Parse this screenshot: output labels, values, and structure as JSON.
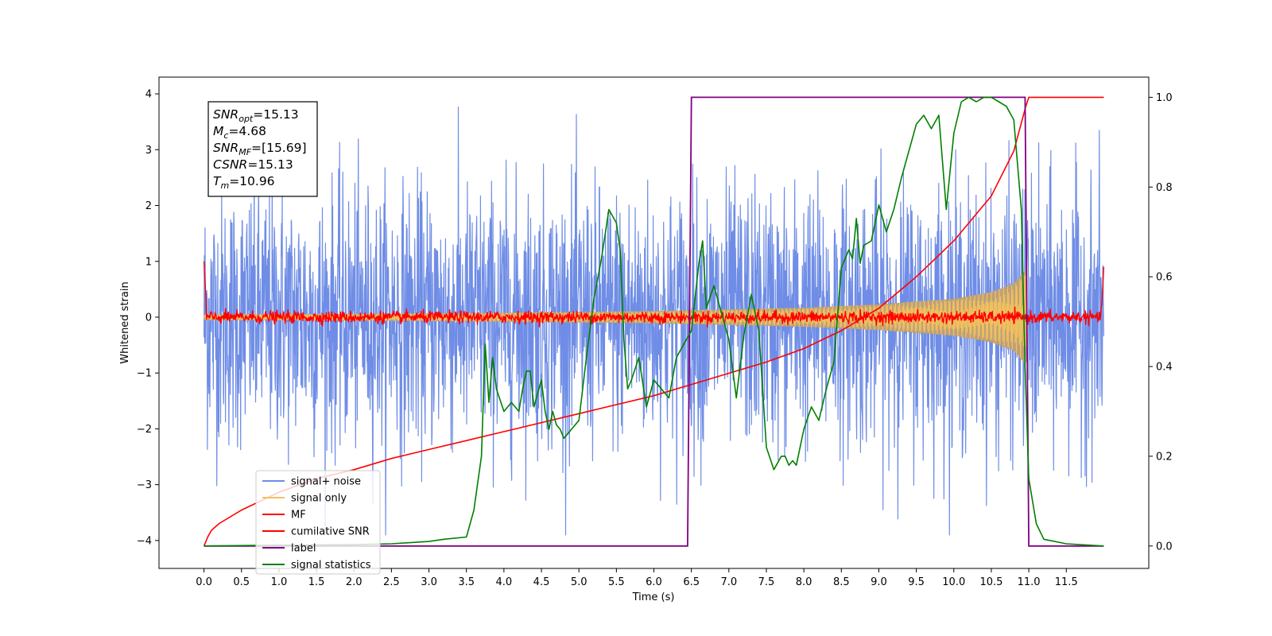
{
  "chart_data": {
    "type": "line",
    "xlabel": "Time (s)",
    "ylabel": "Whitened strain",
    "ylabel_right": "",
    "xlim": [
      -0.6,
      12.6
    ],
    "ylim": [
      -4.5,
      4.3
    ],
    "ylim_right": [
      -0.05,
      1.045
    ],
    "x_ticks": [
      "0.0",
      "0.5",
      "1.0",
      "1.5",
      "2.0",
      "2.5",
      "3.0",
      "3.5",
      "4.0",
      "4.5",
      "5.0",
      "5.5",
      "6.0",
      "6.5",
      "7.0",
      "7.5",
      "8.0",
      "8.5",
      "9.0",
      "9.5",
      "10.0",
      "10.5",
      "11.0",
      "11.5"
    ],
    "y_ticks": [
      "4",
      "3",
      "2",
      "1",
      "0",
      "−1",
      "−2",
      "−3",
      "−4"
    ],
    "y_ticks_right": [
      "1.0",
      "0.8",
      "0.6",
      "0.4",
      "0.2",
      "0.0"
    ],
    "grid": false,
    "legend_position": "lower left",
    "annotation": [
      {
        "name": "SNR",
        "sub": "opt",
        "value": "=15.13"
      },
      {
        "name": "M",
        "sub": "c",
        "value": "=4.68"
      },
      {
        "name": "SNR",
        "sub": "MF",
        "value": "=[15.69]"
      },
      {
        "name": "CSNR",
        "sub": "",
        "value": "=15.13"
      },
      {
        "name": "T",
        "sub": "m",
        "value": "=10.96"
      }
    ],
    "series": [
      {
        "name": "signal+ noise",
        "color": "#6f8de6",
        "axis": "left",
        "x_range": [
          0,
          12.0
        ],
        "envelope": {
          "min": [
            -3.9,
            3.9
          ],
          "typical": [
            -2.5,
            2.5
          ]
        }
      },
      {
        "name": "signal only",
        "color": "#f0c060",
        "axis": "left",
        "x_range": [
          0,
          11.0
        ],
        "fill_color": "#c0a070",
        "amplitude_at": {
          "x": [
            0,
            2,
            4,
            6,
            8,
            9,
            10,
            10.5,
            10.8,
            10.96
          ],
          "a": [
            0.05,
            0.06,
            0.08,
            0.11,
            0.17,
            0.23,
            0.33,
            0.45,
            0.6,
            0.85
          ]
        }
      },
      {
        "name": "MF",
        "color": "#ff0000",
        "axis": "left",
        "x_range": [
          0,
          12.0
        ],
        "typical_amplitude": 0.12
      },
      {
        "name": "cumilative SNR",
        "color": "#ff0000",
        "axis": "right",
        "x": [
          0,
          0.05,
          0.1,
          0.2,
          0.5,
          1,
          1.5,
          2,
          2.5,
          3,
          3.5,
          4,
          4.5,
          5,
          5.5,
          6,
          6.5,
          7,
          7.5,
          8,
          8.5,
          9,
          9.5,
          10,
          10.5,
          10.8,
          10.96,
          11.0,
          12.0
        ],
        "y": [
          0.0,
          0.02,
          0.035,
          0.05,
          0.08,
          0.12,
          0.15,
          0.17,
          0.195,
          0.215,
          0.235,
          0.255,
          0.275,
          0.295,
          0.315,
          0.335,
          0.36,
          0.385,
          0.41,
          0.44,
          0.48,
          0.53,
          0.6,
          0.68,
          0.78,
          0.88,
          0.98,
          1.0,
          1.0
        ]
      },
      {
        "name": "label",
        "color": "#800080",
        "axis": "right",
        "x": [
          0.0,
          6.45,
          6.5,
          10.95,
          11.0,
          12.0
        ],
        "y": [
          0.0,
          0.0,
          1.0,
          1.0,
          0.0,
          0.0
        ]
      },
      {
        "name": "signal statistics",
        "color": "#008000",
        "axis": "right",
        "x": [
          0.0,
          1.0,
          2.0,
          2.5,
          3.0,
          3.2,
          3.5,
          3.6,
          3.7,
          3.75,
          3.8,
          3.85,
          3.9,
          4.0,
          4.1,
          4.2,
          4.25,
          4.3,
          4.35,
          4.4,
          4.5,
          4.55,
          4.6,
          4.65,
          4.7,
          4.75,
          4.8,
          4.9,
          5.0,
          5.1,
          5.2,
          5.3,
          5.4,
          5.5,
          5.55,
          5.6,
          5.65,
          5.7,
          5.8,
          5.9,
          6.0,
          6.1,
          6.2,
          6.3,
          6.4,
          6.5,
          6.6,
          6.65,
          6.7,
          6.8,
          6.9,
          7.0,
          7.1,
          7.2,
          7.3,
          7.4,
          7.5,
          7.6,
          7.7,
          7.75,
          7.8,
          7.85,
          7.9,
          8.0,
          8.1,
          8.2,
          8.3,
          8.4,
          8.5,
          8.6,
          8.65,
          8.7,
          8.75,
          8.8,
          8.9,
          9.0,
          9.1,
          9.2,
          9.3,
          9.4,
          9.5,
          9.6,
          9.7,
          9.8,
          9.9,
          10.0,
          10.1,
          10.2,
          10.3,
          10.4,
          10.5,
          10.6,
          10.7,
          10.8,
          10.9,
          10.95,
          11.0,
          11.1,
          11.2,
          11.5,
          12.0
        ],
        "y": [
          0.0,
          0.002,
          0.003,
          0.005,
          0.01,
          0.015,
          0.02,
          0.08,
          0.2,
          0.45,
          0.32,
          0.42,
          0.35,
          0.3,
          0.32,
          0.3,
          0.35,
          0.39,
          0.39,
          0.31,
          0.37,
          0.3,
          0.26,
          0.3,
          0.27,
          0.26,
          0.24,
          0.26,
          0.28,
          0.42,
          0.55,
          0.64,
          0.75,
          0.72,
          0.66,
          0.46,
          0.35,
          0.37,
          0.42,
          0.31,
          0.37,
          0.35,
          0.33,
          0.42,
          0.45,
          0.48,
          0.63,
          0.68,
          0.53,
          0.58,
          0.52,
          0.46,
          0.33,
          0.47,
          0.56,
          0.48,
          0.22,
          0.17,
          0.2,
          0.2,
          0.18,
          0.19,
          0.18,
          0.26,
          0.31,
          0.28,
          0.35,
          0.41,
          0.62,
          0.66,
          0.64,
          0.73,
          0.63,
          0.67,
          0.68,
          0.76,
          0.7,
          0.75,
          0.82,
          0.88,
          0.94,
          0.96,
          0.93,
          0.96,
          0.75,
          0.92,
          0.99,
          1.0,
          0.99,
          1.0,
          1.0,
          0.99,
          0.98,
          0.95,
          0.75,
          0.4,
          0.15,
          0.05,
          0.015,
          0.005,
          0.0
        ]
      }
    ]
  }
}
